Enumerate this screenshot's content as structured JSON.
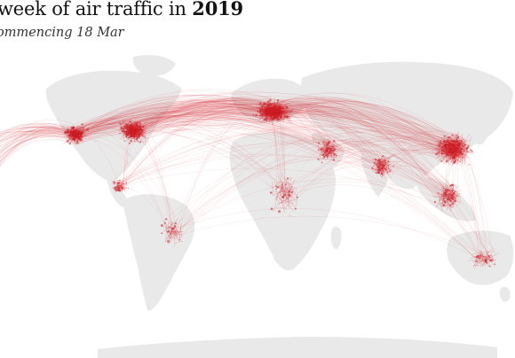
{
  "header": {
    "title_prefix": "week of air traffic in ",
    "title_year": "2019",
    "subtitle": "ommencing 18 Mar"
  },
  "colors": {
    "land": "#e9e9e9",
    "route": "#d21f26",
    "hub": "#c81a22",
    "background": "#ffffff"
  }
}
